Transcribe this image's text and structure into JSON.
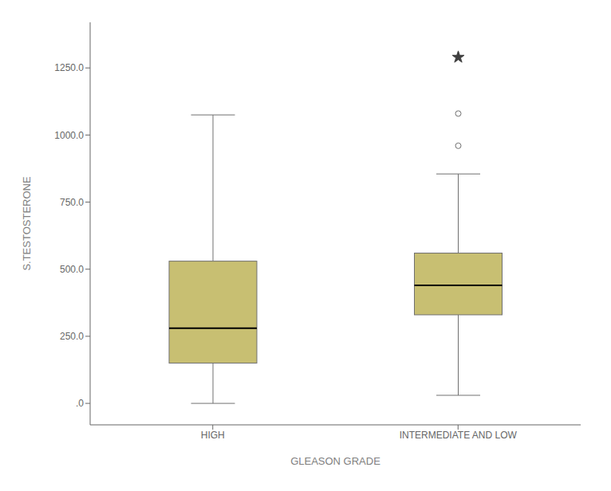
{
  "chart_data": {
    "type": "box",
    "xlabel": "GLEASON GRADE",
    "ylabel": "S.TESTOSTERONE",
    "categories": [
      "HIGH",
      "INTERMEDIATE AND LOW"
    ],
    "whislo": [
      0,
      30
    ],
    "q1": [
      150,
      330
    ],
    "med": [
      280,
      440
    ],
    "q3": [
      530,
      560
    ],
    "whishi": [
      1075,
      855
    ],
    "fliers_circle": [
      [],
      [
        960,
        1080
      ]
    ],
    "fliers_star": [
      [],
      [
        1290
      ]
    ],
    "color": "#c8bf72",
    "ylim": [
      -80,
      1420
    ],
    "yticks": [
      {
        "value": 0,
        "label": ".0"
      },
      {
        "value": 250,
        "label": "250.0"
      },
      {
        "value": 500,
        "label": "500.0"
      },
      {
        "value": 750,
        "label": "750.0"
      },
      {
        "value": 1000,
        "label": "1000.0"
      },
      {
        "value": 1250,
        "label": "1250.0"
      }
    ],
    "grid": false
  }
}
